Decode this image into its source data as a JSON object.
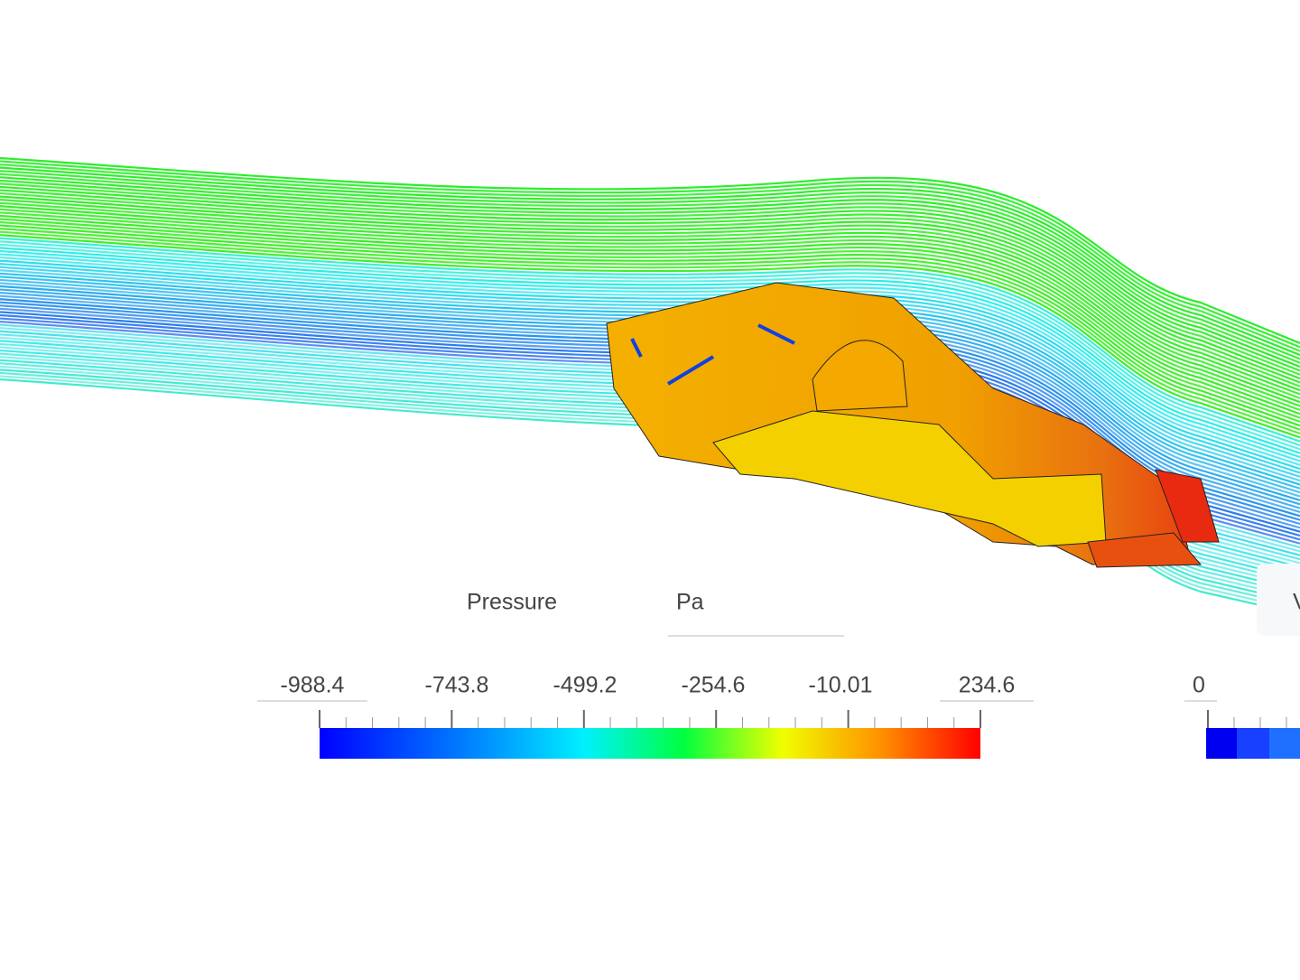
{
  "pressure_legend": {
    "title": "Pressure",
    "unit": "Pa",
    "ticks": [
      "-988.4",
      "-743.8",
      "-499.2",
      "-254.6",
      "-10.01",
      "234.6"
    ]
  },
  "second_legend": {
    "title": "V",
    "ticks": [
      "0"
    ]
  }
}
